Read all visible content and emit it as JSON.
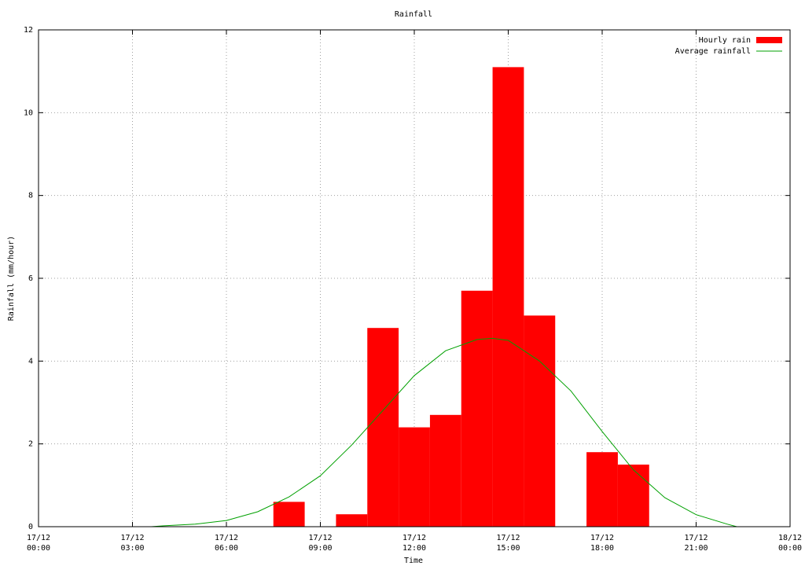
{
  "chart_data": {
    "type": "bar",
    "title": "Rainfall",
    "xlabel": "Time",
    "ylabel": "Rainfall (mm/hour)",
    "xlim": [
      "17/12 00:00",
      "18/12 00:00"
    ],
    "xticks": [
      "17/12 00:00",
      "17/12 03:00",
      "17/12 06:00",
      "17/12 09:00",
      "17/12 12:00",
      "17/12 15:00",
      "17/12 18:00",
      "17/12 21:00",
      "18/12 00:00"
    ],
    "ylim": [
      0,
      12
    ],
    "yticks": [
      0,
      2,
      4,
      6,
      8,
      10,
      12
    ],
    "grid": true,
    "legend": "upper right",
    "series": [
      {
        "name": "Hourly rain",
        "type": "bar",
        "color": "#ff0000",
        "x": [
          "17/12 08:00",
          "17/12 10:00",
          "17/12 11:00",
          "17/12 12:00",
          "17/12 13:00",
          "17/12 14:00",
          "17/12 15:00",
          "17/12 16:00",
          "17/12 18:00",
          "17/12 19:00"
        ],
        "values": [
          0.6,
          0.3,
          4.8,
          2.4,
          2.7,
          5.7,
          11.1,
          5.1,
          1.8,
          1.5
        ]
      },
      {
        "name": "Average rainfall",
        "type": "line",
        "color": "#00a000",
        "x": [
          "17/12 03:36",
          "17/12 04:00",
          "17/12 05:00",
          "17/12 06:00",
          "17/12 07:00",
          "17/12 08:00",
          "17/12 09:00",
          "17/12 10:00",
          "17/12 11:00",
          "17/12 12:00",
          "17/12 13:00",
          "17/12 14:00",
          "17/12 14:30",
          "17/12 15:00",
          "17/12 16:00",
          "17/12 17:00",
          "17/12 18:00",
          "17/12 19:00",
          "17/12 20:00",
          "17/12 21:00",
          "17/12 22:00",
          "17/12 22:18"
        ],
        "values": [
          0,
          0.02,
          0.06,
          0.15,
          0.36,
          0.72,
          1.23,
          1.97,
          2.81,
          3.65,
          4.25,
          4.52,
          4.55,
          4.5,
          4.0,
          3.28,
          2.3,
          1.37,
          0.7,
          0.29,
          0.06,
          0
        ]
      }
    ]
  }
}
